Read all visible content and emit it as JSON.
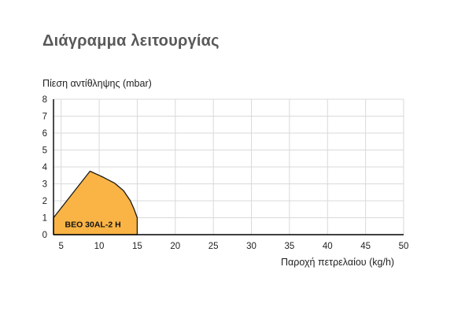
{
  "title": "Διάγραμμα λειτουργίας",
  "chart_data": {
    "type": "area",
    "ylabel": "Πίεση αντίθληψης (mbar)",
    "xlabel": "Παροχή πετρελαίου (kg/h)",
    "xlim": [
      4,
      50
    ],
    "ylim": [
      0,
      8
    ],
    "xticks": [
      5,
      10,
      15,
      20,
      25,
      30,
      35,
      40,
      45,
      50
    ],
    "yticks": [
      0,
      1,
      2,
      3,
      4,
      5,
      6,
      7,
      8
    ],
    "grid": true,
    "fill_color": "#F9B445",
    "edge_color": "#1a1a1a",
    "series": [
      {
        "name": "BEO 30AL-2 H",
        "points": [
          [
            4.0,
            0
          ],
          [
            4.0,
            1.0
          ],
          [
            8.8,
            3.75
          ],
          [
            10.5,
            3.4
          ],
          [
            12.0,
            3.05
          ],
          [
            13.2,
            2.6
          ],
          [
            14.1,
            2.0
          ],
          [
            14.6,
            1.5
          ],
          [
            15.0,
            1.0
          ],
          [
            15.0,
            0
          ]
        ]
      }
    ]
  }
}
